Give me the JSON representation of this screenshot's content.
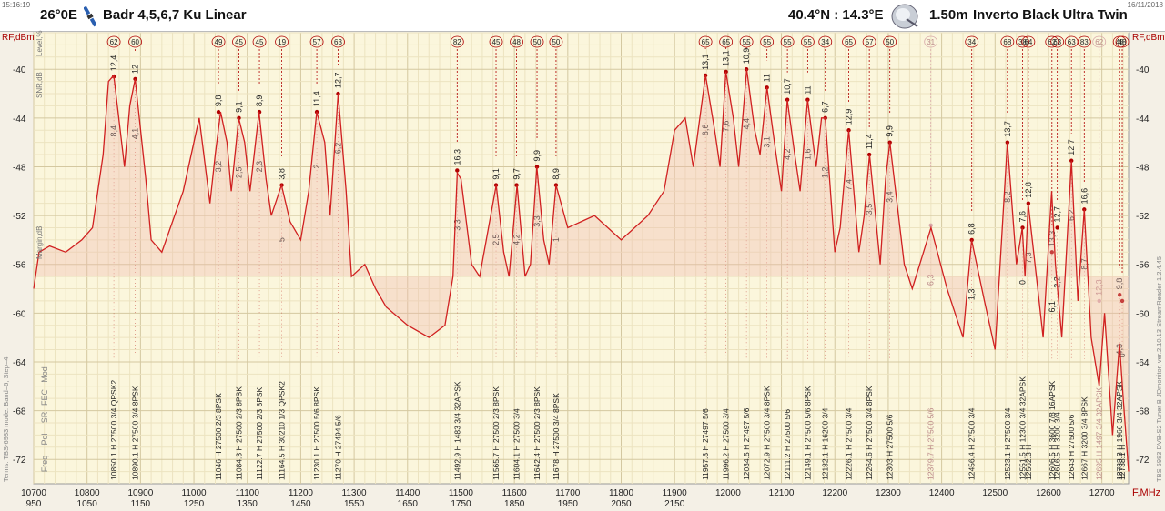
{
  "header": {
    "time": "15:16:19",
    "date": "16/11/2018",
    "sat_pos": "26°0E",
    "sat_name": "Badr 4,5,6,7 Ku Linear",
    "site": "40.4°N : 14.3°E",
    "dish": "1.50m",
    "lnb": "Inverto Black Ultra Twin"
  },
  "side_labels": {
    "rf": "RF,dBm",
    "rf_right": "RF,dBm",
    "level": "Level,%",
    "snr": "SNR,dB",
    "margin": "Margin,dB",
    "left_info": "Terms: TBS-6983 mode: Band=6; Step=4",
    "right_info": "TBS 6983 DVB-S2 Tuner B   JDmonitor, ver.2.10.13  StreamReader 1.2.4.45"
  },
  "row_labels": [
    "Mod",
    "FEC",
    "SR",
    "Pol",
    "Freq"
  ],
  "chart_data": {
    "type": "line",
    "title": "",
    "xlabel": "F,MHz",
    "ylabel": "RF,dBm",
    "xlim": [
      10700,
      12750
    ],
    "ylim": [
      -74,
      -37
    ],
    "yticks": [
      -40,
      -44,
      -48,
      -52,
      -56,
      -60,
      -64,
      -68,
      -72
    ],
    "xticks": [
      10700,
      10800,
      10900,
      11000,
      11100,
      11200,
      11300,
      11400,
      11500,
      11600,
      11700,
      11800,
      11900,
      12000,
      12100,
      12200,
      12300,
      12400,
      12500,
      12600,
      12700
    ],
    "if_ticks": [
      950,
      1050,
      1150,
      1250,
      1350,
      1450,
      1550,
      1650,
      1750,
      1850,
      1950,
      2050,
      2150
    ],
    "grid": true,
    "spectrum": {
      "x": [
        10700,
        10710,
        10730,
        10760,
        10790,
        10810,
        10830,
        10840,
        10850,
        10870,
        10880,
        10890,
        10910,
        10920,
        10940,
        10980,
        11010,
        11030,
        11040,
        11050,
        11062,
        11070,
        11084,
        11095,
        11105,
        11122,
        11135,
        11145,
        11164,
        11180,
        11200,
        11215,
        11230,
        11245,
        11255,
        11270,
        11285,
        11295,
        11320,
        11340,
        11360,
        11400,
        11440,
        11470,
        11485,
        11493,
        11500,
        11520,
        11535,
        11566,
        11580,
        11590,
        11605,
        11620,
        11630,
        11642,
        11655,
        11665,
        11678,
        11700,
        11750,
        11800,
        11850,
        11880,
        11900,
        11920,
        11935,
        11958,
        11975,
        11985,
        11996,
        12010,
        12020,
        12035,
        12050,
        12060,
        12073,
        12090,
        12100,
        12111,
        12125,
        12135,
        12149,
        12165,
        12175,
        12182,
        12200,
        12210,
        12226,
        12245,
        12255,
        12265,
        12285,
        12295,
        12303,
        12330,
        12345,
        12380,
        12410,
        12440,
        12456,
        12480,
        12500,
        12523,
        12540,
        12551,
        12556,
        12562,
        12580,
        12590,
        12606,
        12613,
        12625,
        12643,
        12655,
        12667,
        12680,
        12695,
        12705,
        12720,
        12733,
        12740,
        12750
      ],
      "y": [
        -58,
        -55,
        -54.5,
        -55,
        -54,
        -53,
        -47,
        -41,
        -40.5,
        -48,
        -43,
        -40.8,
        -49,
        -54,
        -55,
        -50,
        -44,
        -51,
        -47,
        -43.5,
        -46,
        -50,
        -44,
        -46,
        -50,
        -43.5,
        -49,
        -52,
        -49.5,
        -52.5,
        -54,
        -50,
        -43.5,
        -46,
        -52,
        -42,
        -50,
        -57,
        -56,
        -58,
        -59.5,
        -61,
        -62,
        -61,
        -57,
        -48.5,
        -49,
        -56,
        -57,
        -49.5,
        -55,
        -57,
        -49.5,
        -57,
        -56,
        -48,
        -54,
        -56,
        -49.5,
        -53,
        -52,
        -54,
        -52,
        -50,
        -45,
        -44,
        -48,
        -40.5,
        -45,
        -48,
        -40.2,
        -44,
        -48,
        -40,
        -45,
        -47,
        -41.5,
        -47,
        -50,
        -42.5,
        -47,
        -50,
        -42.5,
        -48,
        -44,
        -44,
        -55,
        -53,
        -45,
        -55,
        -52,
        -47,
        -56,
        -49,
        -46,
        -56,
        -58,
        -53,
        -58,
        -62,
        -54,
        -59,
        -63,
        -46,
        -56,
        -53,
        -57,
        -51,
        -58,
        -62,
        -50,
        -56,
        -62,
        -47.5,
        -59,
        -51.5,
        -62,
        -66,
        -60,
        -70,
        -62.5,
        -67,
        -73
      ]
    },
    "carriers": [
      {
        "f": 10850.1,
        "pol": "H",
        "sr": "27500",
        "fec": "3/4",
        "mod": "QPSK2",
        "level": "62",
        "snr": "12,4",
        "margin": "8,4",
        "rf": -40.6
      },
      {
        "f": 10890.1,
        "pol": "H",
        "sr": "27500",
        "fec": "3/4",
        "mod": "8PSK",
        "level": "60",
        "snr": "12",
        "margin": "4,1",
        "rf": -40.8
      },
      {
        "f": 11046,
        "pol": "H",
        "sr": "27500",
        "fec": "2/3",
        "mod": "8PSK",
        "level": "49",
        "snr": "9,8",
        "margin": "3,2",
        "rf": -43.5
      },
      {
        "f": 11084.3,
        "pol": "H",
        "sr": "27500",
        "fec": "2/3",
        "mod": "8PSK",
        "level": "45",
        "snr": "9,1",
        "margin": "2,5",
        "rf": -44
      },
      {
        "f": 11122.7,
        "pol": "H",
        "sr": "27500",
        "fec": "2/3",
        "mod": "8PSK",
        "level": "45",
        "snr": "8,9",
        "margin": "2,3",
        "rf": -43.5
      },
      {
        "f": 11164.5,
        "pol": "H",
        "sr": "30210",
        "fec": "1/3",
        "mod": "QPSK2",
        "level": "19",
        "snr": "3,8",
        "margin": "5",
        "rf": -49.5
      },
      {
        "f": 11230.1,
        "pol": "H",
        "sr": "27500",
        "fec": "5/6",
        "mod": "8PSK",
        "level": "57",
        "snr": "11,4",
        "margin": "2",
        "rf": -43.5
      },
      {
        "f": 11270,
        "pol": "H",
        "sr": "27494",
        "fec": "5/6",
        "mod": "",
        "level": "63",
        "snr": "12,7",
        "margin": "6,2",
        "rf": -42
      },
      {
        "f": 11492.9,
        "pol": "H",
        "sr": "1483",
        "fec": "3/4",
        "mod": "32APSK",
        "level": "82",
        "snr": "16,3",
        "margin": "3,3",
        "rf": -48.3
      },
      {
        "f": 11565.7,
        "pol": "H",
        "sr": "27500",
        "fec": "2/3",
        "mod": "8PSK",
        "level": "45",
        "snr": "9,1",
        "margin": "2,5",
        "rf": -49.5
      },
      {
        "f": 11604.1,
        "pol": "H",
        "sr": "27500",
        "fec": "3/4",
        "mod": "",
        "level": "48",
        "snr": "9,7",
        "margin": "4,2",
        "rf": -49.5
      },
      {
        "f": 11642.4,
        "pol": "H",
        "sr": "27500",
        "fec": "2/3",
        "mod": "8PSK",
        "level": "50",
        "snr": "9,9",
        "margin": "3,3",
        "rf": -48
      },
      {
        "f": 11678,
        "pol": "H",
        "sr": "27500",
        "fec": "3/4",
        "mod": "8PSK",
        "level": "50",
        "snr": "8,9",
        "margin": "1",
        "rf": -49.5
      },
      {
        "f": 11957.8,
        "pol": "H",
        "sr": "27497",
        "fec": "5/6",
        "mod": "",
        "level": "65",
        "snr": "13,1",
        "margin": "6,6",
        "rf": -40.5
      },
      {
        "f": 11996.2,
        "pol": "H",
        "sr": "27500",
        "fec": "3/4",
        "mod": "",
        "level": "65",
        "snr": "13,1",
        "margin": "7,6",
        "rf": -40.2
      },
      {
        "f": 12034.5,
        "pol": "H",
        "sr": "27497",
        "fec": "5/6",
        "mod": "",
        "level": "55",
        "snr": "10,9",
        "margin": "4,4",
        "rf": -40
      },
      {
        "f": 12072.9,
        "pol": "H",
        "sr": "27500",
        "fec": "3/4",
        "mod": "8PSK",
        "level": "55",
        "snr": "11",
        "margin": "3,1",
        "rf": -41.5
      },
      {
        "f": 12111.2,
        "pol": "H",
        "sr": "27500",
        "fec": "5/6",
        "mod": "",
        "level": "55",
        "snr": "10,7",
        "margin": "4,2",
        "rf": -42.5
      },
      {
        "f": 12149.1,
        "pol": "H",
        "sr": "27500",
        "fec": "5/6",
        "mod": "8PSK",
        "level": "55",
        "snr": "11",
        "margin": "1,6",
        "rf": -42.5
      },
      {
        "f": 12182.1,
        "pol": "H",
        "sr": "16200",
        "fec": "3/4",
        "mod": "",
        "level": "34",
        "snr": "6,7",
        "margin": "1,2",
        "rf": -44
      },
      {
        "f": 12226.1,
        "pol": "H",
        "sr": "27500",
        "fec": "3/4",
        "mod": "",
        "level": "65",
        "snr": "12,9",
        "margin": "7,4",
        "rf": -45
      },
      {
        "f": 12264.6,
        "pol": "H",
        "sr": "27500",
        "fec": "3/4",
        "mod": "8PSK",
        "level": "57",
        "snr": "11,4",
        "margin": "3,5",
        "rf": -47
      },
      {
        "f": 12303,
        "pol": "H",
        "sr": "27500",
        "fec": "5/6",
        "mod": "",
        "level": "50",
        "snr": "9,9",
        "margin": "3,4",
        "rf": -46
      },
      {
        "f": 12379.7,
        "pol": "H",
        "sr": "27500",
        "fec": "5/6",
        "mod": "",
        "level": "31",
        "snr": "",
        "margin": "6,3",
        "rf": -52.8,
        "faded": true
      },
      {
        "f": 12456.4,
        "pol": "H",
        "sr": "27500",
        "fec": "3/4",
        "mod": "",
        "level": "34",
        "snr": "6,8",
        "margin": "1,3",
        "rf": -54
      },
      {
        "f": 12523.1,
        "pol": "H",
        "sr": "27500",
        "fec": "3/4",
        "mod": "",
        "level": "68",
        "snr": "13,7",
        "margin": "8,2",
        "rf": -46
      },
      {
        "f": 12551.5,
        "pol": "H",
        "sr": "12300",
        "fec": "3/4",
        "mod": "32APSK",
        "level": "38",
        "snr": "7,6",
        "margin": "0",
        "rf": -53
      },
      {
        "f": 12562.3,
        "pol": "H",
        "sr": "",
        "fec": "",
        "mod": "",
        "level": "64",
        "snr": "12,8",
        "margin": "7,3",
        "rf": -51
      },
      {
        "f": 12606.5,
        "pol": "H",
        "sr": "3600",
        "fec": "7/8",
        "mod": "16APSK",
        "level": "62",
        "snr": "13,3",
        "margin": "6,1",
        "rf": -55
      },
      {
        "f": 12616.5,
        "pol": "H",
        "sr": "3200",
        "fec": "3/4",
        "mod": "",
        "level": "63",
        "snr": "12,7",
        "margin": "2,2",
        "rf": -53
      },
      {
        "f": 12643,
        "pol": "H",
        "sr": "27500",
        "fec": "5/6",
        "mod": "",
        "level": "63",
        "snr": "12,7",
        "margin": "6,2",
        "rf": -47.5
      },
      {
        "f": 12667,
        "pol": "H",
        "sr": "3200",
        "fec": "3/4",
        "mod": "8PSK",
        "level": "83",
        "snr": "16,6",
        "margin": "8,7",
        "rf": -51.5
      },
      {
        "f": 12695,
        "pol": "H",
        "sr": "1497",
        "fec": "3/4",
        "mod": "32APSK",
        "level": "62",
        "snr": "12,3",
        "margin": "",
        "rf": -59,
        "faded": true
      },
      {
        "f": 12733.3,
        "pol": "H",
        "sr": "1966",
        "fec": "3/4",
        "mod": "32APSK",
        "level": "48",
        "snr": "9,8",
        "margin": "4,3",
        "rf": -58.5
      },
      {
        "f": 12738.1,
        "pol": "H",
        "sr": "",
        "fec": "",
        "mod": "",
        "level": "48",
        "snr": "",
        "margin": "0",
        "rf": -59
      }
    ]
  }
}
